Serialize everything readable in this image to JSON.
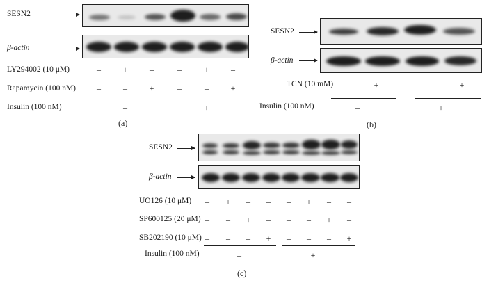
{
  "panel_a": {
    "letter": "(a)",
    "protein": "SESN2",
    "control": "β-actin",
    "rows": [
      {
        "label": "LY294002 (10 μM)",
        "signs": [
          "–",
          "+",
          "–",
          "–",
          "+",
          "–"
        ]
      },
      {
        "label": "Rapamycin (100 nM)",
        "signs": [
          "–",
          "–",
          "+",
          "–",
          "–",
          "+"
        ]
      }
    ],
    "insulin_label": "Insulin (100 nM)",
    "insulin_signs": [
      "–",
      "+"
    ]
  },
  "panel_b": {
    "letter": "(b)",
    "protein": "SESN2",
    "control": "β-actin",
    "rows": [
      {
        "label": "TCN (10 mM)",
        "signs": [
          "–",
          "+",
          "–",
          "+"
        ]
      }
    ],
    "insulin_label": "Insulin (100 nM)",
    "insulin_signs": [
      "–",
      "+"
    ]
  },
  "panel_c": {
    "letter": "(c)",
    "protein": "SESN2",
    "control": "β-actin",
    "rows": [
      {
        "label": "UO126 (10 μM)",
        "signs": [
          "–",
          "+",
          "–",
          "–",
          "–",
          "+",
          "–",
          "–"
        ]
      },
      {
        "label": "SP600125 (20 μM)",
        "signs": [
          "–",
          "–",
          "+",
          "–",
          "–",
          "–",
          "+",
          "–"
        ]
      },
      {
        "label": "SB202190 (10 μM)",
        "signs": [
          "–",
          "–",
          "–",
          "+",
          "–",
          "–",
          "–",
          "+"
        ]
      }
    ],
    "insulin_label": "Insulin (100 nM)",
    "insulin_signs": [
      "–",
      "+"
    ]
  }
}
